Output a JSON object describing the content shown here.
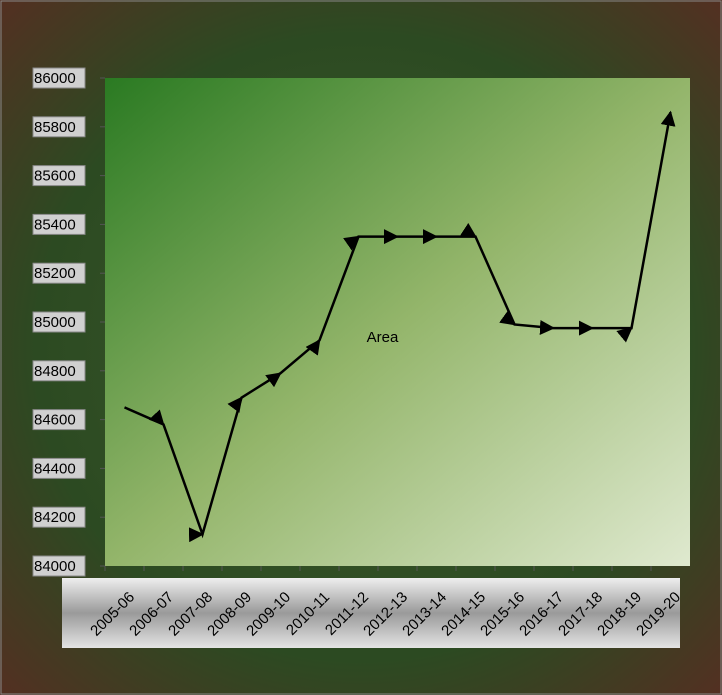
{
  "chart_data": {
    "type": "line",
    "categories": [
      "2005-06",
      "2006-07",
      "2007-08",
      "2008-09",
      "2009-10",
      "2010-11",
      "2011-12",
      "2012-13",
      "2013-14",
      "2014-15",
      "2015-16",
      "2016-17",
      "2017-18",
      "2018-19",
      "2019-20"
    ],
    "series": [
      {
        "name": "Area",
        "color": "#000000",
        "values": [
          84650,
          84580,
          84130,
          84690,
          84790,
          84925,
          85350,
          85350,
          85350,
          85350,
          84990,
          84975,
          84975,
          84975,
          85860
        ]
      }
    ],
    "ylim": [
      84000,
      86000
    ],
    "yticks": [
      84000,
      84200,
      84400,
      84600,
      84800,
      85000,
      85200,
      85400,
      85600,
      85800,
      86000
    ]
  }
}
